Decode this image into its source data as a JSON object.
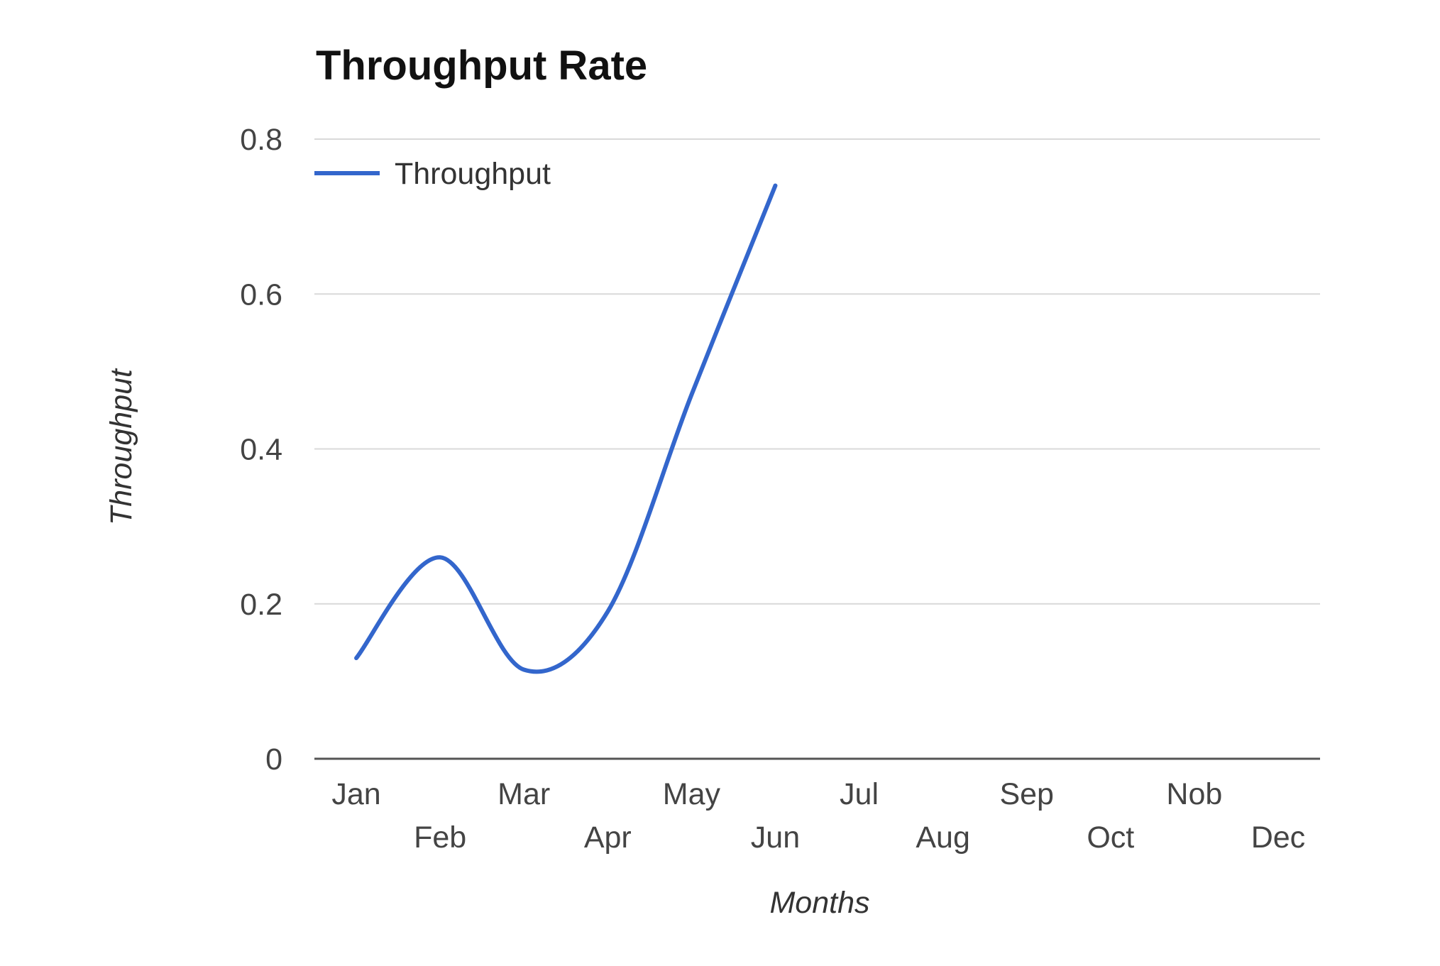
{
  "chart_data": {
    "type": "line",
    "title": "Throughput Rate",
    "xlabel": "Months",
    "ylabel": "Throughput",
    "categories": [
      "Jan",
      "Feb",
      "Mar",
      "Apr",
      "May",
      "Jun",
      "Jul",
      "Aug",
      "Sep",
      "Oct",
      "Nob",
      "Dec"
    ],
    "series": [
      {
        "name": "Throughput",
        "color": "#3366cc",
        "values": [
          0.13,
          0.26,
          0.115,
          0.19,
          0.47,
          0.74,
          null,
          null,
          null,
          null,
          null,
          null
        ]
      }
    ],
    "ylim": [
      0,
      0.8
    ],
    "yticks": [
      "0",
      "0.2",
      "0.4",
      "0.6",
      "0.8"
    ],
    "grid": true,
    "legend_position": "top-left",
    "curve": "smooth",
    "colors": {
      "gridline": "#d9d9d9",
      "baseline": "#555555"
    }
  }
}
